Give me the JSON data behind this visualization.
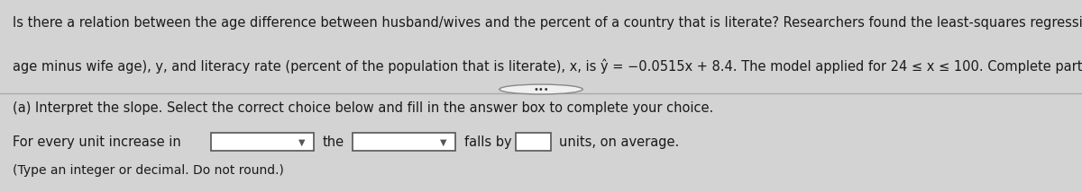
{
  "background_color": "#d3d3d3",
  "top_panel_bg": "#ffffff",
  "bottom_panel_bg": "#d3d3d3",
  "top_text_line1": "Is there a relation between the age difference between husband/wives and the percent of a country that is literate? Researchers found the least-squares regression between age difference (husband",
  "top_text_line2": "age minus wife age), y, and literacy rate (percent of the population that is literate), x, is ŷ = −0.0515x + 8.4. The model applied for 24 ≤ x ≤ 100. Complete parts (a) through (e) below.",
  "separator_button_text": "•••",
  "part_a_label": "(a) Interpret the slope. Select the correct choice below and fill in the answer box to complete your choice.",
  "for_every_text": "For every unit increase in",
  "the_text": "the",
  "falls_by_text": "falls by",
  "units_avg_text": "units, on average.",
  "type_note": "(Type an integer or decimal. Do not round.)",
  "font_size_body": 10.5,
  "font_size_note": 10.0,
  "text_color": "#1a1a1a",
  "box_color": "#ffffff",
  "box_edge_color": "#555555",
  "line_color": "#aaaaaa"
}
